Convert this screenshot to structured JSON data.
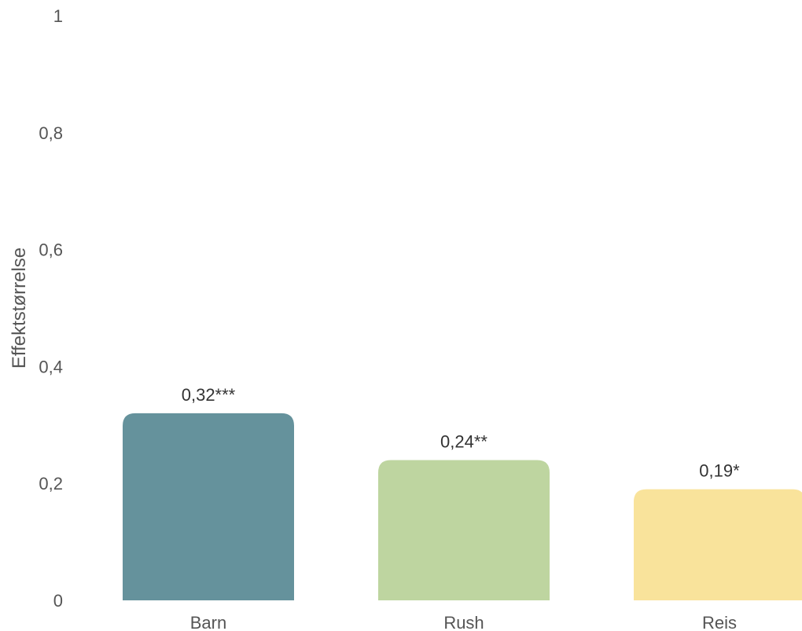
{
  "chart_data": {
    "type": "bar",
    "title": "",
    "xlabel": "",
    "ylabel": "Effektstørrelse",
    "ylim": [
      0,
      1
    ],
    "yticks": [
      0,
      0.2,
      0.4,
      0.6,
      0.8,
      1
    ],
    "ytick_labels": [
      "0",
      "0,2",
      "0,4",
      "0,6",
      "0,8",
      "1"
    ],
    "categories": [
      "Barn",
      "Rush",
      "Reis"
    ],
    "values": [
      0.32,
      0.24,
      0.19
    ],
    "data_labels": [
      "0,32***",
      "0,24**",
      "0,19*"
    ],
    "colors": [
      "#65929c",
      "#bed5a0",
      "#f9e39b"
    ],
    "grid": false,
    "legend": "none"
  }
}
